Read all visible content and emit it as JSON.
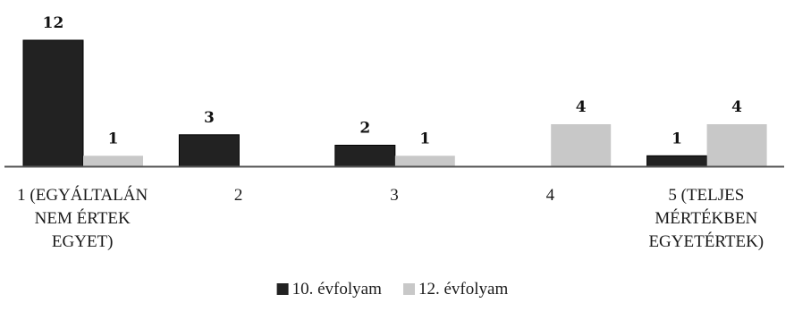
{
  "chart_data": {
    "type": "bar",
    "categories": [
      [
        "1 (EGYÁLTALÁN",
        "NEM ÉRTEK",
        "EGYET)"
      ],
      [
        "2"
      ],
      [
        "3"
      ],
      [
        "4"
      ],
      [
        "5 (TELJES",
        "MÉRTÉKBEN",
        "EGYETÉRTEK)"
      ]
    ],
    "series": [
      {
        "name": "10. évfolyam",
        "color": "#222222",
        "values": [
          12,
          3,
          2,
          0,
          1
        ],
        "labels": [
          "12",
          "3",
          "2",
          "",
          "1"
        ]
      },
      {
        "name": "12. évfolyam",
        "color": "#c8c8c8",
        "values": [
          1,
          0,
          1,
          4,
          4
        ],
        "labels": [
          "1",
          "",
          "1",
          "4",
          "4"
        ]
      }
    ],
    "ylim": [
      0,
      12
    ],
    "grid": false,
    "legend": "bottom",
    "axis_color": "#555555"
  }
}
